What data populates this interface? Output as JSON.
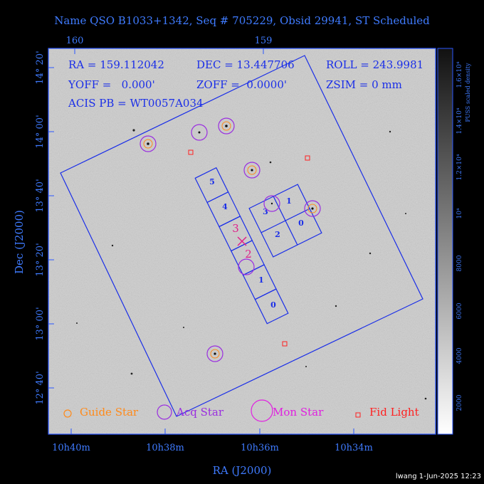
{
  "title": "Name QSO B1033+1342, Seq # 705229, Obsid 29941, ST Scheduled",
  "info": {
    "ra": "RA = 159.112042",
    "dec": "DEC = 13.447706",
    "roll": "ROLL = 243.9981",
    "yoff": "YOFF =   0.000'",
    "zoff": "ZOFF =  0.0000'",
    "zsim": "ZSIM = 0 mm",
    "acis": "ACIS PB = WT0057A034"
  },
  "axes": {
    "x_label": "RA (J2000)",
    "y_label": "Dec (J2000)",
    "top_ticks": [
      "160",
      "159"
    ],
    "bottom_ticks": [
      "10h40m",
      "10h38m",
      "10h36m",
      "10h34m"
    ],
    "left_ticks": [
      "14° 20'",
      "14° 00'",
      "13° 40'",
      "13° 20'",
      "13° 00'",
      "12° 40'"
    ]
  },
  "colorbar": {
    "label": "PUSS scaled density",
    "ticks": [
      "2000",
      "4000",
      "6000",
      "8000",
      "10⁴",
      "1.2×10⁴",
      "1.4×10⁴",
      "1.6×10⁴"
    ]
  },
  "chips": {
    "s_array": [
      "5",
      "4",
      "3",
      "2",
      "1",
      "0"
    ],
    "i_array": [
      "3",
      "1",
      "2",
      "0"
    ]
  },
  "legend": [
    "Guide Star",
    "Acq Star",
    "Mon Star",
    "Fid Light"
  ],
  "footer": "lwang  1-Jun-2025 12:23"
}
